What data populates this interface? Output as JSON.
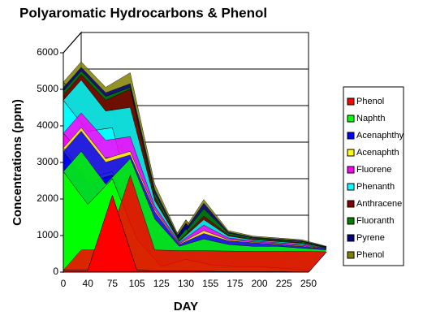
{
  "chart_data": {
    "type": "stacked-area-3d",
    "title": "Polyaromatic Hydrocarbons & Phenol",
    "y_label": "Concentrations (ppm)",
    "x_label": "DAY",
    "categories": [
      "0",
      "40",
      "75",
      "105",
      "125",
      "130",
      "155",
      "175",
      "200",
      "225",
      "250"
    ],
    "ylim": [
      0,
      6000
    ],
    "yticks": [
      0,
      1000,
      2000,
      3000,
      4000,
      5000,
      6000
    ],
    "grid": true,
    "series": [
      {
        "name": "Phenol",
        "color": "#ff0000",
        "values": [
          50,
          50,
          2100,
          50,
          30,
          30,
          20,
          10,
          10,
          10,
          0
        ]
      },
      {
        "name": "Naphth",
        "color": "#00ff00",
        "values": [
          2700,
          1800,
          450,
          850,
          120,
          320,
          180,
          140,
          140,
          90,
          50
        ]
      },
      {
        "name": "Acenaphthy",
        "color": "#0000ff",
        "values": [
          550,
          600,
          100,
          200,
          50,
          150,
          100,
          100,
          50,
          50,
          30
        ]
      },
      {
        "name": "Acenaphth",
        "color": "#ffff00",
        "values": [
          100,
          100,
          100,
          50,
          20,
          80,
          30,
          20,
          20,
          20,
          10
        ]
      },
      {
        "name": "Fluorene",
        "color": "#ff00ff",
        "values": [
          400,
          500,
          400,
          100,
          30,
          150,
          50,
          30,
          30,
          30,
          10
        ]
      },
      {
        "name": "Phenanth",
        "color": "#00ffff",
        "values": [
          900,
          800,
          800,
          150,
          30,
          150,
          50,
          30,
          30,
          30,
          10
        ]
      },
      {
        "name": "Anthracene",
        "color": "#800000",
        "values": [
          150,
          300,
          500,
          100,
          20,
          100,
          30,
          20,
          20,
          20,
          10
        ]
      },
      {
        "name": "Fluoranth",
        "color": "#008000",
        "values": [
          100,
          100,
          50,
          100,
          30,
          200,
          50,
          30,
          30,
          30,
          10
        ]
      },
      {
        "name": "Pyrene",
        "color": "#000080",
        "values": [
          100,
          100,
          100,
          100,
          30,
          150,
          30,
          20,
          20,
          20,
          10
        ]
      },
      {
        "name": "Phenol",
        "color": "#808000",
        "values": [
          150,
          150,
          300,
          150,
          40,
          100,
          40,
          30,
          30,
          30,
          10
        ]
      }
    ]
  }
}
